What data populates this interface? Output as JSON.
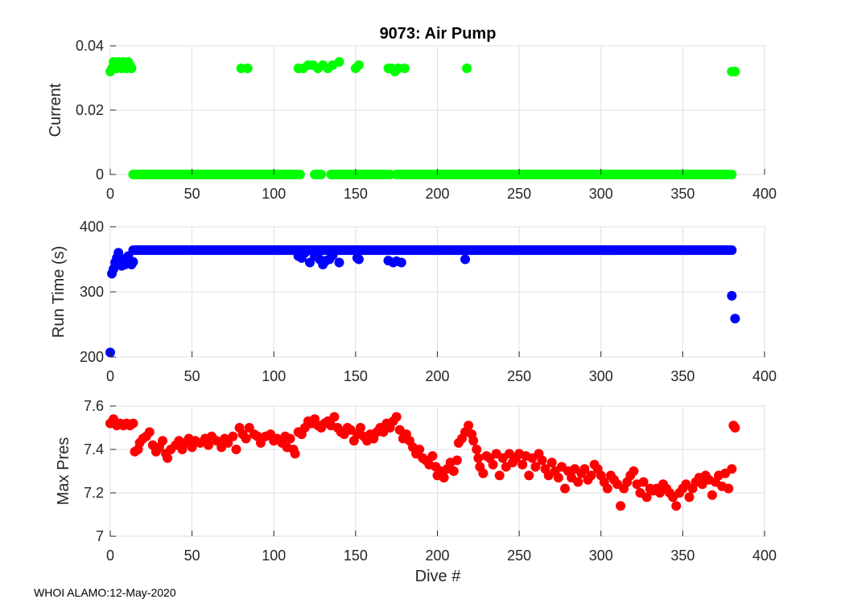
{
  "title": "9073: Air Pump",
  "footer": "WHOI ALAMO:12-May-2020",
  "xlabel": "Dive #",
  "chart_data": [
    {
      "type": "scatter",
      "name": "current",
      "ylabel": "Current",
      "color": "#00ff00",
      "xlim": [
        0,
        400
      ],
      "ylim": [
        0,
        0.04
      ],
      "xticks": [
        0,
        50,
        100,
        150,
        200,
        250,
        300,
        350,
        400
      ],
      "yticks": [
        0,
        0.02,
        0.04
      ],
      "ytick_labels": [
        "0",
        "0.02",
        "0.04"
      ],
      "points": [
        [
          0,
          0.032
        ],
        [
          1,
          0.033
        ],
        [
          2,
          0.035
        ],
        [
          3,
          0.034
        ],
        [
          4,
          0.033
        ],
        [
          5,
          0.035
        ],
        [
          6,
          0.034
        ],
        [
          7,
          0.033
        ],
        [
          8,
          0.035
        ],
        [
          9,
          0.034
        ],
        [
          10,
          0.033
        ],
        [
          11,
          0.035
        ],
        [
          12,
          0.034
        ],
        [
          13,
          0.033
        ],
        [
          80,
          0.033
        ],
        [
          84,
          0.033
        ],
        [
          115,
          0.033
        ],
        [
          118,
          0.033
        ],
        [
          121,
          0.034
        ],
        [
          124,
          0.034
        ],
        [
          127,
          0.033
        ],
        [
          130,
          0.034
        ],
        [
          133,
          0.033
        ],
        [
          136,
          0.034
        ],
        [
          140,
          0.035
        ],
        [
          150,
          0.033
        ],
        [
          152,
          0.034
        ],
        [
          170,
          0.033
        ],
        [
          172,
          0.033
        ],
        [
          174,
          0.032
        ],
        [
          176,
          0.033
        ],
        [
          180,
          0.033
        ],
        [
          218,
          0.033
        ],
        [
          380,
          0.032
        ],
        [
          382,
          0.032
        ]
      ],
      "baseline_value": 0,
      "baseline_ranges": [
        [
          14,
          116
        ],
        [
          125,
          129
        ],
        [
          135,
          171
        ],
        [
          175,
          380
        ]
      ]
    },
    {
      "type": "scatter",
      "name": "run-time",
      "ylabel": "Run Time (s)",
      "color": "#0000ff",
      "xlim": [
        0,
        400
      ],
      "ylim": [
        200,
        400
      ],
      "xticks": [
        0,
        50,
        100,
        150,
        200,
        250,
        300,
        350,
        400
      ],
      "yticks": [
        200,
        300,
        400
      ],
      "ytick_labels": [
        "200",
        "300",
        "400"
      ],
      "points": [
        [
          0,
          207
        ],
        [
          1,
          328
        ],
        [
          2,
          335
        ],
        [
          3,
          345
        ],
        [
          4,
          352
        ],
        [
          5,
          360
        ],
        [
          6,
          348
        ],
        [
          7,
          340
        ],
        [
          8,
          350
        ],
        [
          9,
          342
        ],
        [
          10,
          345
        ],
        [
          11,
          355
        ],
        [
          12,
          348
        ],
        [
          13,
          342
        ],
        [
          14,
          346
        ],
        [
          115,
          355
        ],
        [
          117,
          352
        ],
        [
          119,
          360
        ],
        [
          122,
          345
        ],
        [
          125,
          355
        ],
        [
          128,
          350
        ],
        [
          130,
          342
        ],
        [
          132,
          348
        ],
        [
          134,
          350
        ],
        [
          136,
          356
        ],
        [
          140,
          345
        ],
        [
          151,
          352
        ],
        [
          152,
          350
        ],
        [
          170,
          348
        ],
        [
          173,
          345
        ],
        [
          175,
          347
        ],
        [
          178,
          345
        ],
        [
          217,
          350
        ],
        [
          380,
          294
        ],
        [
          382,
          259
        ]
      ],
      "baseline_value": 364,
      "baseline_ranges": [
        [
          14,
          380
        ]
      ]
    },
    {
      "type": "scatter",
      "name": "max-pres",
      "ylabel": "Max Pres",
      "color": "#ff0000",
      "xlim": [
        0,
        400
      ],
      "ylim": [
        7,
        7.6
      ],
      "xticks": [
        0,
        50,
        100,
        150,
        200,
        250,
        300,
        350,
        400
      ],
      "yticks": [
        7,
        7.2,
        7.4,
        7.6
      ],
      "ytick_labels": [
        "7",
        "7.2",
        "7.4",
        "7.6"
      ],
      "points": [
        [
          0,
          7.52
        ],
        [
          2,
          7.54
        ],
        [
          4,
          7.51
        ],
        [
          6,
          7.52
        ],
        [
          8,
          7.51
        ],
        [
          10,
          7.52
        ],
        [
          12,
          7.51
        ],
        [
          14,
          7.52
        ],
        [
          15,
          7.39
        ],
        [
          17,
          7.4
        ],
        [
          18,
          7.43
        ],
        [
          20,
          7.45
        ],
        [
          22,
          7.46
        ],
        [
          24,
          7.48
        ],
        [
          26,
          7.42
        ],
        [
          28,
          7.39
        ],
        [
          30,
          7.41
        ],
        [
          32,
          7.44
        ],
        [
          34,
          7.38
        ],
        [
          35,
          7.36
        ],
        [
          37,
          7.4
        ],
        [
          40,
          7.42
        ],
        [
          42,
          7.44
        ],
        [
          44,
          7.4
        ],
        [
          46,
          7.43
        ],
        [
          48,
          7.45
        ],
        [
          50,
          7.41
        ],
        [
          52,
          7.44
        ],
        [
          55,
          7.43
        ],
        [
          58,
          7.45
        ],
        [
          60,
          7.42
        ],
        [
          62,
          7.46
        ],
        [
          65,
          7.44
        ],
        [
          68,
          7.41
        ],
        [
          70,
          7.45
        ],
        [
          72,
          7.43
        ],
        [
          75,
          7.46
        ],
        [
          77,
          7.4
        ],
        [
          79,
          7.5
        ],
        [
          81,
          7.47
        ],
        [
          83,
          7.45
        ],
        [
          85,
          7.5
        ],
        [
          88,
          7.47
        ],
        [
          90,
          7.46
        ],
        [
          92,
          7.43
        ],
        [
          95,
          7.46
        ],
        [
          98,
          7.47
        ],
        [
          100,
          7.44
        ],
        [
          102,
          7.45
        ],
        [
          105,
          7.43
        ],
        [
          107,
          7.46
        ],
        [
          108,
          7.41
        ],
        [
          110,
          7.45
        ],
        [
          112,
          7.4
        ],
        [
          113,
          7.38
        ],
        [
          115,
          7.48
        ],
        [
          117,
          7.47
        ],
        [
          119,
          7.5
        ],
        [
          121,
          7.53
        ],
        [
          123,
          7.52
        ],
        [
          125,
          7.54
        ],
        [
          127,
          7.51
        ],
        [
          129,
          7.5
        ],
        [
          131,
          7.52
        ],
        [
          133,
          7.53
        ],
        [
          135,
          7.51
        ],
        [
          137,
          7.55
        ],
        [
          139,
          7.5
        ],
        [
          141,
          7.48
        ],
        [
          143,
          7.47
        ],
        [
          145,
          7.5
        ],
        [
          147,
          7.49
        ],
        [
          149,
          7.44
        ],
        [
          151,
          7.47
        ],
        [
          153,
          7.5
        ],
        [
          155,
          7.46
        ],
        [
          157,
          7.44
        ],
        [
          159,
          7.47
        ],
        [
          161,
          7.45
        ],
        [
          163,
          7.48
        ],
        [
          165,
          7.5
        ],
        [
          167,
          7.48
        ],
        [
          169,
          7.52
        ],
        [
          171,
          7.5
        ],
        [
          173,
          7.53
        ],
        [
          175,
          7.55
        ],
        [
          177,
          7.49
        ],
        [
          179,
          7.45
        ],
        [
          181,
          7.47
        ],
        [
          183,
          7.44
        ],
        [
          185,
          7.41
        ],
        [
          187,
          7.38
        ],
        [
          189,
          7.4
        ],
        [
          191,
          7.36
        ],
        [
          193,
          7.35
        ],
        [
          195,
          7.33
        ],
        [
          197,
          7.37
        ],
        [
          199,
          7.32
        ],
        [
          200,
          7.28
        ],
        [
          202,
          7.3
        ],
        [
          204,
          7.27
        ],
        [
          206,
          7.31
        ],
        [
          208,
          7.34
        ],
        [
          210,
          7.3
        ],
        [
          212,
          7.35
        ],
        [
          213,
          7.43
        ],
        [
          215,
          7.45
        ],
        [
          217,
          7.48
        ],
        [
          219,
          7.51
        ],
        [
          221,
          7.47
        ],
        [
          222,
          7.44
        ],
        [
          224,
          7.4
        ],
        [
          225,
          7.36
        ],
        [
          226,
          7.32
        ],
        [
          228,
          7.29
        ],
        [
          230,
          7.37
        ],
        [
          232,
          7.36
        ],
        [
          234,
          7.33
        ],
        [
          236,
          7.38
        ],
        [
          238,
          7.28
        ],
        [
          240,
          7.36
        ],
        [
          242,
          7.32
        ],
        [
          244,
          7.38
        ],
        [
          246,
          7.34
        ],
        [
          248,
          7.36
        ],
        [
          250,
          7.38
        ],
        [
          252,
          7.33
        ],
        [
          254,
          7.37
        ],
        [
          256,
          7.28
        ],
        [
          258,
          7.36
        ],
        [
          260,
          7.32
        ],
        [
          262,
          7.38
        ],
        [
          264,
          7.35
        ],
        [
          266,
          7.31
        ],
        [
          268,
          7.28
        ],
        [
          270,
          7.34
        ],
        [
          272,
          7.3
        ],
        [
          274,
          7.27
        ],
        [
          276,
          7.32
        ],
        [
          278,
          7.22
        ],
        [
          280,
          7.3
        ],
        [
          282,
          7.27
        ],
        [
          284,
          7.31
        ],
        [
          286,
          7.25
        ],
        [
          288,
          7.29
        ],
        [
          290,
          7.31
        ],
        [
          292,
          7.26
        ],
        [
          294,
          7.28
        ],
        [
          296,
          7.33
        ],
        [
          298,
          7.31
        ],
        [
          300,
          7.28
        ],
        [
          302,
          7.25
        ],
        [
          304,
          7.22
        ],
        [
          306,
          7.28
        ],
        [
          308,
          7.26
        ],
        [
          310,
          7.24
        ],
        [
          312,
          7.14
        ],
        [
          314,
          7.22
        ],
        [
          316,
          7.25
        ],
        [
          318,
          7.28
        ],
        [
          320,
          7.3
        ],
        [
          322,
          7.24
        ],
        [
          324,
          7.2
        ],
        [
          326,
          7.25
        ],
        [
          328,
          7.18
        ],
        [
          330,
          7.22
        ],
        [
          332,
          7.21
        ],
        [
          334,
          7.22
        ],
        [
          336,
          7.2
        ],
        [
          338,
          7.24
        ],
        [
          340,
          7.22
        ],
        [
          342,
          7.2
        ],
        [
          344,
          7.18
        ],
        [
          346,
          7.14
        ],
        [
          348,
          7.2
        ],
        [
          350,
          7.22
        ],
        [
          352,
          7.24
        ],
        [
          354,
          7.18
        ],
        [
          356,
          7.22
        ],
        [
          358,
          7.25
        ],
        [
          360,
          7.27
        ],
        [
          362,
          7.24
        ],
        [
          364,
          7.28
        ],
        [
          366,
          7.26
        ],
        [
          368,
          7.19
        ],
        [
          370,
          7.25
        ],
        [
          372,
          7.28
        ],
        [
          374,
          7.23
        ],
        [
          376,
          7.29
        ],
        [
          378,
          7.22
        ],
        [
          380,
          7.31
        ],
        [
          381,
          7.51
        ],
        [
          382,
          7.5
        ]
      ]
    }
  ]
}
